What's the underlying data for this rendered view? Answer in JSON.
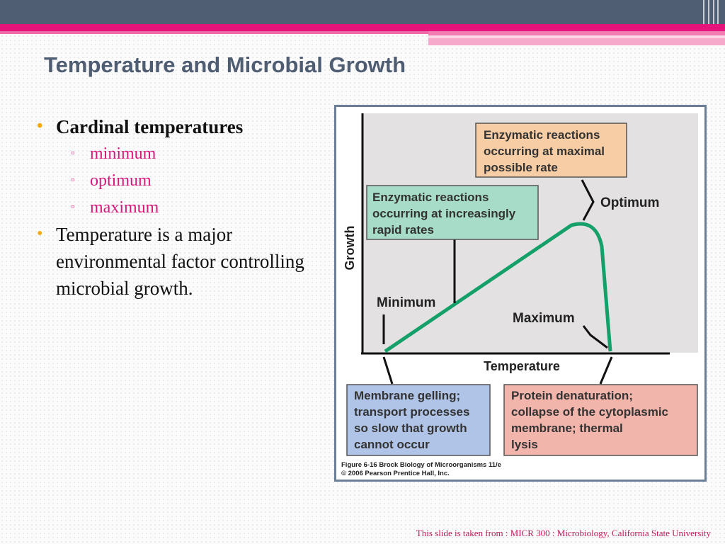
{
  "slide": {
    "title": "Temperature and Microbial Growth",
    "footer": "This slide is taken from : MICR 300 : Microbiology, California State University"
  },
  "bullets": {
    "b1": "Cardinal temperatures",
    "sub": [
      "minimum",
      "optimum",
      "maximum"
    ],
    "b2": "Temperature is a major environmental factor controlling microbial growth."
  },
  "figure": {
    "y_axis_label": "Growth",
    "x_axis_label": "Temperature",
    "minimum_label": "Minimum",
    "optimum_label": "Optimum",
    "maximum_label": "Maximum",
    "box_orange": [
      "Enzymatic reactions",
      "occurring at maximal",
      "possible rate"
    ],
    "box_green": [
      "Enzymatic reactions",
      "occurring at increasingly",
      "rapid rates"
    ],
    "box_blue": [
      "Membrane gelling;",
      "transport processes",
      "so slow that growth",
      "cannot occur"
    ],
    "box_red": [
      "Protein denaturation;",
      "collapse of the cytoplasmic",
      "membrane; thermal",
      "lysis"
    ],
    "caption_line1": "Figure 6-16  Brock Biology of Microorganisms 11/e",
    "caption_line2": "© 2006 Pearson Prentice Hall, Inc.",
    "colors": {
      "frame": "#6d7f96",
      "plot_bg": "#e3e1e2",
      "curve": "#15a06a",
      "orange_box": "#f6cda5",
      "green_box": "#a6dcc8",
      "blue_box": "#b0c4e8",
      "red_box": "#f2b5ab"
    }
  }
}
